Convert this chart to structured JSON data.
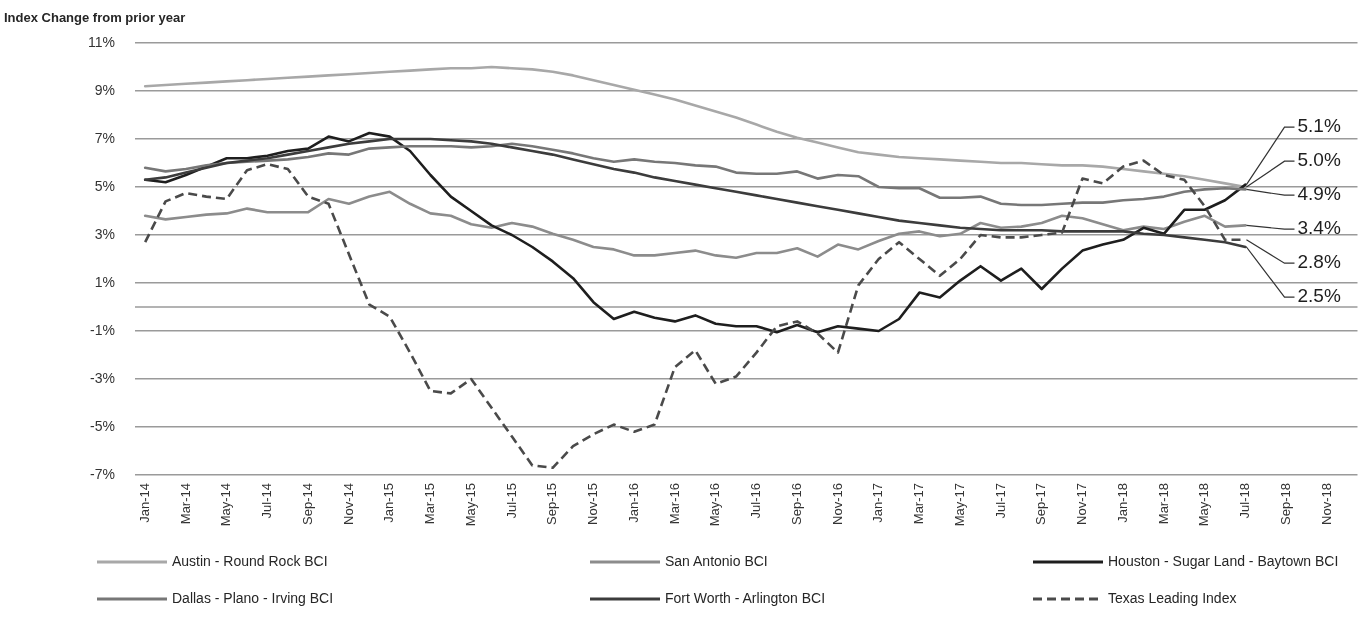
{
  "chart_data": {
    "type": "line",
    "ylabel": "Index Change from prior year",
    "categories": [
      "Jan-14",
      null,
      "Mar-14",
      null,
      "May-14",
      null,
      "Jul-14",
      null,
      "Sep-14",
      null,
      "Nov-14",
      null,
      "Jan-15",
      null,
      "Mar-15",
      null,
      "May-15",
      null,
      "Jul-15",
      null,
      "Sep-15",
      null,
      "Nov-15",
      null,
      "Jan-16",
      null,
      "Mar-16",
      null,
      "May-16",
      null,
      "Jul-16",
      null,
      "Sep-16",
      null,
      "Nov-16",
      null,
      "Jan-17",
      null,
      "Mar-17",
      null,
      "May-17",
      null,
      "Jul-17",
      null,
      "Sep-17",
      null,
      "Nov-17",
      null,
      "Jan-18",
      null,
      "Mar-18",
      null,
      "May-18",
      null,
      "Jul-18",
      null,
      "Sep-18",
      null,
      "Nov-18",
      null
    ],
    "series": [
      {
        "name": "Austin - Round Rock BCI",
        "color": "#a8a8a8",
        "values": [
          9.2,
          9.25,
          9.3,
          9.35,
          9.4,
          9.45,
          9.5,
          9.55,
          9.6,
          9.65,
          9.7,
          9.75,
          9.8,
          9.85,
          9.9,
          9.95,
          9.95,
          10.0,
          9.95,
          9.9,
          9.8,
          9.65,
          9.45,
          9.25,
          9.05,
          8.85,
          8.65,
          8.4,
          8.15,
          7.9,
          7.6,
          7.3,
          7.05,
          6.85,
          6.65,
          6.45,
          6.35,
          6.25,
          6.2,
          6.15,
          6.1,
          6.05,
          6.0,
          6.0,
          5.95,
          5.9,
          5.9,
          5.85,
          5.75,
          5.65,
          5.55,
          5.45,
          5.3,
          5.15,
          5.0,
          null,
          null,
          null,
          null,
          null
        ],
        "value_labels": [
          null,
          null,
          null,
          null,
          null,
          null,
          null,
          null,
          null,
          null,
          null,
          null,
          null,
          null,
          null,
          null,
          null,
          null,
          null,
          null,
          null,
          null,
          null,
          null,
          null,
          null,
          null,
          null,
          null,
          null,
          null,
          null,
          null,
          null,
          null,
          null,
          null,
          null,
          null,
          null,
          null,
          null,
          null,
          null,
          null,
          null,
          null,
          null,
          null,
          null,
          null,
          null,
          null,
          null,
          "5.0%",
          null,
          null,
          null,
          null,
          null
        ]
      },
      {
        "name": "San Antonio BCI",
        "color": "#8c8c8c",
        "values": [
          3.8,
          3.65,
          3.75,
          3.85,
          3.9,
          4.1,
          3.95,
          3.95,
          3.95,
          4.5,
          4.3,
          4.6,
          4.8,
          4.3,
          3.9,
          3.8,
          3.45,
          3.3,
          3.5,
          3.35,
          3.05,
          2.8,
          2.5,
          2.4,
          2.15,
          2.15,
          2.25,
          2.35,
          2.15,
          2.05,
          2.25,
          2.25,
          2.45,
          2.1,
          2.6,
          2.4,
          2.75,
          3.05,
          3.15,
          2.95,
          3.05,
          3.5,
          3.3,
          3.35,
          3.5,
          3.8,
          3.7,
          3.45,
          3.2,
          3.35,
          3.25,
          3.55,
          3.8,
          3.35,
          3.4,
          null,
          null,
          null,
          null,
          null
        ],
        "value_labels": [
          null,
          null,
          null,
          null,
          null,
          null,
          null,
          null,
          null,
          null,
          null,
          null,
          null,
          null,
          null,
          null,
          null,
          null,
          null,
          null,
          null,
          null,
          null,
          null,
          null,
          null,
          null,
          null,
          null,
          null,
          null,
          null,
          null,
          null,
          null,
          null,
          null,
          null,
          null,
          null,
          null,
          null,
          null,
          null,
          null,
          null,
          null,
          null,
          null,
          null,
          null,
          null,
          null,
          null,
          "3.4%",
          null,
          null,
          null,
          null,
          null
        ]
      },
      {
        "name": "Houston - Sugar Land - Baytown BCI",
        "color": "#1e1e1e",
        "values": [
          5.3,
          5.2,
          5.5,
          5.85,
          6.2,
          6.2,
          6.3,
          6.5,
          6.6,
          7.1,
          6.9,
          7.25,
          7.1,
          6.5,
          5.5,
          4.6,
          4.0,
          3.4,
          3.0,
          2.5,
          1.9,
          1.2,
          0.2,
          -0.5,
          -0.2,
          -0.45,
          -0.6,
          -0.35,
          -0.7,
          -0.8,
          -0.8,
          -1.05,
          -0.75,
          -1.05,
          -0.8,
          -0.9,
          -1.0,
          -0.5,
          0.6,
          0.4,
          1.1,
          1.7,
          1.1,
          1.6,
          0.75,
          1.6,
          2.35,
          2.6,
          2.8,
          3.3,
          3.05,
          4.05,
          4.05,
          4.45,
          5.1,
          null,
          null,
          null,
          null,
          null
        ],
        "value_labels": [
          null,
          null,
          null,
          null,
          null,
          null,
          null,
          null,
          null,
          null,
          null,
          null,
          null,
          null,
          null,
          null,
          null,
          null,
          null,
          null,
          null,
          null,
          null,
          null,
          null,
          null,
          null,
          null,
          null,
          null,
          null,
          null,
          null,
          null,
          null,
          null,
          null,
          null,
          null,
          null,
          null,
          null,
          null,
          null,
          null,
          null,
          null,
          null,
          null,
          null,
          null,
          null,
          null,
          null,
          "5.1%",
          null,
          null,
          null,
          null,
          null
        ]
      },
      {
        "name": "Dallas - Plano - Irving BCI",
        "color": "#777777",
        "values": [
          5.8,
          5.65,
          5.75,
          5.9,
          6.0,
          6.05,
          6.1,
          6.15,
          6.25,
          6.4,
          6.35,
          6.6,
          6.65,
          6.7,
          6.7,
          6.7,
          6.65,
          6.7,
          6.8,
          6.7,
          6.55,
          6.4,
          6.2,
          6.05,
          6.15,
          6.05,
          6.0,
          5.9,
          5.85,
          5.6,
          5.55,
          5.55,
          5.65,
          5.35,
          5.5,
          5.45,
          5.0,
          4.95,
          4.95,
          4.55,
          4.55,
          4.6,
          4.3,
          4.25,
          4.25,
          4.3,
          4.35,
          4.35,
          4.45,
          4.5,
          4.6,
          4.8,
          4.9,
          4.95,
          4.9,
          null,
          null,
          null,
          null,
          null
        ],
        "value_labels": [
          null,
          null,
          null,
          null,
          null,
          null,
          null,
          null,
          null,
          null,
          null,
          null,
          null,
          null,
          null,
          null,
          null,
          null,
          null,
          null,
          null,
          null,
          null,
          null,
          null,
          null,
          null,
          null,
          null,
          null,
          null,
          null,
          null,
          null,
          null,
          null,
          null,
          null,
          null,
          null,
          null,
          null,
          null,
          null,
          null,
          null,
          null,
          null,
          null,
          null,
          null,
          null,
          null,
          null,
          "4.9%",
          null,
          null,
          null,
          null,
          null
        ]
      },
      {
        "name": "Fort Worth - Arlington BCI",
        "color": "#3c3c3c",
        "values": [
          5.3,
          5.4,
          5.6,
          5.8,
          6.0,
          6.1,
          6.2,
          6.35,
          6.5,
          6.65,
          6.8,
          6.9,
          7.0,
          7.0,
          7.0,
          6.95,
          6.9,
          6.8,
          6.65,
          6.5,
          6.35,
          6.15,
          5.95,
          5.75,
          5.6,
          5.4,
          5.25,
          5.1,
          4.95,
          4.8,
          4.65,
          4.5,
          4.35,
          4.2,
          4.05,
          3.9,
          3.75,
          3.6,
          3.5,
          3.4,
          3.3,
          3.25,
          3.2,
          3.2,
          3.2,
          3.15,
          3.15,
          3.15,
          3.15,
          3.05,
          3.0,
          2.9,
          2.8,
          2.7,
          2.5,
          null,
          null,
          null,
          null,
          null
        ],
        "value_labels": [
          null,
          null,
          null,
          null,
          null,
          null,
          null,
          null,
          null,
          null,
          null,
          null,
          null,
          null,
          null,
          null,
          null,
          null,
          null,
          null,
          null,
          null,
          null,
          null,
          null,
          null,
          null,
          null,
          null,
          null,
          null,
          null,
          null,
          null,
          null,
          null,
          null,
          null,
          null,
          null,
          null,
          null,
          null,
          null,
          null,
          null,
          null,
          null,
          null,
          null,
          null,
          null,
          null,
          null,
          "2.5%",
          null,
          null,
          null,
          null,
          null
        ]
      },
      {
        "name": "Texas Leading Index",
        "color": "#4a4a4a",
        "line_style": "dashed",
        "values": [
          2.7,
          4.4,
          4.75,
          4.6,
          4.5,
          5.7,
          5.95,
          5.75,
          4.6,
          4.3,
          2.2,
          0.1,
          -0.4,
          -1.9,
          -3.5,
          -3.6,
          -3.0,
          -4.2,
          -5.4,
          -6.6,
          -6.7,
          -5.8,
          -5.3,
          -4.9,
          -5.2,
          -4.9,
          -2.5,
          -1.8,
          -3.2,
          -2.9,
          -1.9,
          -0.8,
          -0.6,
          -1.1,
          -1.9,
          0.9,
          2.0,
          2.7,
          2.0,
          1.3,
          2.0,
          3.0,
          2.9,
          2.9,
          3.0,
          3.1,
          5.35,
          5.15,
          5.85,
          6.1,
          5.5,
          5.3,
          4.2,
          2.8,
          2.8,
          null,
          null,
          null,
          null,
          null
        ],
        "value_labels": [
          null,
          null,
          null,
          null,
          null,
          null,
          null,
          null,
          null,
          null,
          null,
          null,
          null,
          null,
          null,
          null,
          null,
          null,
          null,
          null,
          null,
          null,
          null,
          null,
          null,
          null,
          null,
          null,
          null,
          null,
          null,
          null,
          null,
          null,
          null,
          null,
          null,
          null,
          null,
          null,
          null,
          null,
          null,
          null,
          null,
          null,
          null,
          null,
          null,
          null,
          null,
          null,
          null,
          null,
          "2.8%",
          null,
          null,
          null,
          null,
          null
        ]
      }
    ],
    "ylim": [
      -7,
      11
    ],
    "yticks": [
      {
        "value": -7,
        "label": "-7%"
      },
      {
        "value": -5,
        "label": "-5%"
      },
      {
        "value": -3,
        "label": "-3%"
      },
      {
        "value": -1,
        "label": "-1%"
      },
      {
        "value": 1,
        "label": "1%"
      },
      {
        "value": 3,
        "label": "3%"
      },
      {
        "value": 5,
        "label": "5%"
      },
      {
        "value": 7,
        "label": "7%"
      },
      {
        "value": 9,
        "label": "9%"
      },
      {
        "value": 11,
        "label": "11%"
      }
    ],
    "ref_lines": [
      {
        "axis": "y",
        "value": 0,
        "color": "#9a9a9a"
      }
    ],
    "grid": "y",
    "legend": "bottom",
    "marker": "none",
    "line_style": "solid"
  }
}
